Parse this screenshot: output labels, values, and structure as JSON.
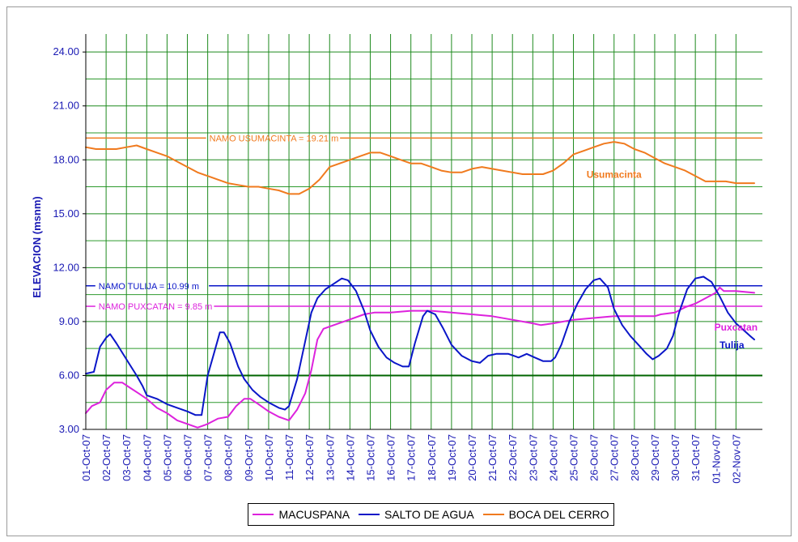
{
  "chart_data": {
    "type": "line",
    "title": "",
    "xlabel": "",
    "ylabel": "ELEVACION (msnm)",
    "ylim": [
      3.0,
      25.0
    ],
    "yticks": [
      "3.00",
      "6.00",
      "9.00",
      "12.00",
      "15.00",
      "18.00",
      "21.00",
      "24.00"
    ],
    "xlim": [
      1,
      34.3
    ],
    "x_tick_labels": [
      "01-Oct-07",
      "02-Oct-07",
      "03-Oct-07",
      "04-Oct-07",
      "05-Oct-07",
      "06-Oct-07",
      "07-Oct-07",
      "08-Oct-07",
      "09-Oct-07",
      "10-Oct-07",
      "11-Oct-07",
      "12-Oct-07",
      "13-Oct-07",
      "14-Oct-07",
      "15-Oct-07",
      "16-Oct-07",
      "17-Oct-07",
      "18-Oct-07",
      "19-Oct-07",
      "20-Oct-07",
      "21-Oct-07",
      "22-Oct-07",
      "23-Oct-07",
      "24-Oct-07",
      "25-Oct-07",
      "26-Oct-07",
      "27-Oct-07",
      "28-Oct-07",
      "29-Oct-07",
      "30-Oct-07",
      "31-Oct-07",
      "01-Nov-07",
      "02-Nov-07"
    ],
    "grid": true,
    "legend_position": "bottom",
    "series": [
      {
        "name": "MACUSPANA",
        "color": "#dd22dd",
        "points": [
          [
            1.0,
            3.9
          ],
          [
            1.3,
            4.3
          ],
          [
            1.7,
            4.5
          ],
          [
            2.0,
            5.2
          ],
          [
            2.4,
            5.6
          ],
          [
            2.8,
            5.6
          ],
          [
            3.2,
            5.3
          ],
          [
            3.6,
            5.0
          ],
          [
            4.0,
            4.7
          ],
          [
            4.5,
            4.2
          ],
          [
            5.0,
            3.9
          ],
          [
            5.5,
            3.5
          ],
          [
            6.0,
            3.3
          ],
          [
            6.5,
            3.1
          ],
          [
            7.0,
            3.3
          ],
          [
            7.5,
            3.6
          ],
          [
            8.0,
            3.7
          ],
          [
            8.4,
            4.3
          ],
          [
            8.8,
            4.7
          ],
          [
            9.1,
            4.7
          ],
          [
            9.5,
            4.4
          ],
          [
            10.0,
            4.0
          ],
          [
            10.5,
            3.7
          ],
          [
            11.0,
            3.5
          ],
          [
            11.4,
            4.1
          ],
          [
            11.8,
            5.0
          ],
          [
            12.1,
            6.3
          ],
          [
            12.4,
            8.0
          ],
          [
            12.7,
            8.6
          ],
          [
            13.2,
            8.8
          ],
          [
            13.7,
            9.0
          ],
          [
            14.2,
            9.2
          ],
          [
            14.7,
            9.4
          ],
          [
            15.2,
            9.5
          ],
          [
            16.0,
            9.5
          ],
          [
            17.0,
            9.6
          ],
          [
            18.0,
            9.6
          ],
          [
            19.0,
            9.5
          ],
          [
            20.0,
            9.4
          ],
          [
            21.0,
            9.3
          ],
          [
            22.0,
            9.1
          ],
          [
            23.0,
            8.9
          ],
          [
            23.4,
            8.8
          ],
          [
            24.0,
            8.9
          ],
          [
            25.0,
            9.1
          ],
          [
            26.0,
            9.2
          ],
          [
            27.0,
            9.3
          ],
          [
            28.0,
            9.3
          ],
          [
            29.0,
            9.3
          ],
          [
            29.3,
            9.4
          ],
          [
            30.0,
            9.5
          ],
          [
            30.5,
            9.8
          ],
          [
            31.0,
            10.0
          ],
          [
            31.5,
            10.3
          ],
          [
            32.0,
            10.6
          ],
          [
            32.2,
            10.9
          ],
          [
            32.4,
            10.7
          ],
          [
            33.0,
            10.7
          ],
          [
            33.9,
            10.6
          ]
        ]
      },
      {
        "name": "SALTO DE AGUA",
        "color": "#0a16c8",
        "points": [
          [
            1.0,
            6.1
          ],
          [
            1.4,
            6.2
          ],
          [
            1.7,
            7.6
          ],
          [
            2.0,
            8.1
          ],
          [
            2.2,
            8.3
          ],
          [
            2.5,
            7.8
          ],
          [
            3.0,
            6.9
          ],
          [
            3.5,
            6.0
          ],
          [
            3.8,
            5.4
          ],
          [
            4.0,
            4.9
          ],
          [
            4.5,
            4.7
          ],
          [
            5.0,
            4.4
          ],
          [
            5.5,
            4.2
          ],
          [
            6.0,
            4.0
          ],
          [
            6.4,
            3.8
          ],
          [
            6.7,
            3.8
          ],
          [
            7.0,
            6.0
          ],
          [
            7.3,
            7.2
          ],
          [
            7.6,
            8.4
          ],
          [
            7.8,
            8.4
          ],
          [
            8.1,
            7.8
          ],
          [
            8.5,
            6.5
          ],
          [
            8.8,
            5.8
          ],
          [
            9.2,
            5.2
          ],
          [
            9.6,
            4.8
          ],
          [
            10.0,
            4.5
          ],
          [
            10.5,
            4.2
          ],
          [
            10.8,
            4.1
          ],
          [
            11.0,
            4.3
          ],
          [
            11.4,
            5.8
          ],
          [
            11.8,
            7.9
          ],
          [
            12.1,
            9.5
          ],
          [
            12.4,
            10.3
          ],
          [
            12.8,
            10.8
          ],
          [
            13.2,
            11.1
          ],
          [
            13.6,
            11.4
          ],
          [
            13.9,
            11.3
          ],
          [
            14.3,
            10.7
          ],
          [
            14.7,
            9.6
          ],
          [
            15.0,
            8.5
          ],
          [
            15.4,
            7.6
          ],
          [
            15.8,
            7.0
          ],
          [
            16.2,
            6.7
          ],
          [
            16.6,
            6.5
          ],
          [
            16.9,
            6.5
          ],
          [
            17.2,
            7.8
          ],
          [
            17.6,
            9.3
          ],
          [
            17.8,
            9.6
          ],
          [
            18.2,
            9.4
          ],
          [
            18.6,
            8.6
          ],
          [
            19.0,
            7.7
          ],
          [
            19.5,
            7.1
          ],
          [
            20.0,
            6.8
          ],
          [
            20.4,
            6.7
          ],
          [
            20.8,
            7.1
          ],
          [
            21.2,
            7.2
          ],
          [
            21.8,
            7.2
          ],
          [
            22.3,
            7.0
          ],
          [
            22.7,
            7.2
          ],
          [
            23.1,
            7.0
          ],
          [
            23.5,
            6.8
          ],
          [
            23.9,
            6.8
          ],
          [
            24.1,
            7.0
          ],
          [
            24.4,
            7.7
          ],
          [
            24.8,
            9.0
          ],
          [
            25.2,
            10.0
          ],
          [
            25.6,
            10.8
          ],
          [
            26.0,
            11.3
          ],
          [
            26.3,
            11.4
          ],
          [
            26.7,
            10.9
          ],
          [
            27.0,
            9.7
          ],
          [
            27.4,
            8.8
          ],
          [
            27.8,
            8.2
          ],
          [
            28.2,
            7.7
          ],
          [
            28.6,
            7.2
          ],
          [
            28.9,
            6.9
          ],
          [
            29.2,
            7.1
          ],
          [
            29.6,
            7.5
          ],
          [
            29.9,
            8.2
          ],
          [
            30.2,
            9.5
          ],
          [
            30.6,
            10.8
          ],
          [
            31.0,
            11.4
          ],
          [
            31.4,
            11.5
          ],
          [
            31.8,
            11.2
          ],
          [
            32.2,
            10.4
          ],
          [
            32.6,
            9.5
          ],
          [
            33.0,
            8.9
          ],
          [
            33.4,
            8.5
          ],
          [
            33.7,
            8.2
          ],
          [
            33.9,
            8.0
          ]
        ]
      },
      {
        "name": "BOCA DEL CERRO",
        "color": "#f07a1e",
        "points": [
          [
            1.0,
            18.7
          ],
          [
            1.5,
            18.6
          ],
          [
            2.0,
            18.6
          ],
          [
            2.5,
            18.6
          ],
          [
            3.0,
            18.7
          ],
          [
            3.5,
            18.8
          ],
          [
            4.0,
            18.6
          ],
          [
            4.5,
            18.4
          ],
          [
            5.0,
            18.2
          ],
          [
            5.5,
            17.9
          ],
          [
            6.0,
            17.6
          ],
          [
            6.5,
            17.3
          ],
          [
            7.0,
            17.1
          ],
          [
            7.5,
            16.9
          ],
          [
            8.0,
            16.7
          ],
          [
            8.5,
            16.6
          ],
          [
            9.0,
            16.5
          ],
          [
            9.5,
            16.5
          ],
          [
            10.0,
            16.4
          ],
          [
            10.5,
            16.3
          ],
          [
            11.0,
            16.1
          ],
          [
            11.5,
            16.1
          ],
          [
            12.0,
            16.4
          ],
          [
            12.5,
            16.9
          ],
          [
            13.0,
            17.6
          ],
          [
            13.5,
            17.8
          ],
          [
            14.0,
            18.0
          ],
          [
            14.5,
            18.2
          ],
          [
            15.0,
            18.4
          ],
          [
            15.5,
            18.4
          ],
          [
            16.0,
            18.2
          ],
          [
            16.5,
            18.0
          ],
          [
            17.0,
            17.8
          ],
          [
            17.5,
            17.8
          ],
          [
            18.0,
            17.6
          ],
          [
            18.5,
            17.4
          ],
          [
            19.0,
            17.3
          ],
          [
            19.5,
            17.3
          ],
          [
            20.0,
            17.5
          ],
          [
            20.5,
            17.6
          ],
          [
            21.0,
            17.5
          ],
          [
            21.5,
            17.4
          ],
          [
            22.0,
            17.3
          ],
          [
            22.5,
            17.2
          ],
          [
            23.0,
            17.2
          ],
          [
            23.5,
            17.2
          ],
          [
            24.0,
            17.4
          ],
          [
            24.5,
            17.8
          ],
          [
            25.0,
            18.3
          ],
          [
            25.5,
            18.5
          ],
          [
            26.0,
            18.7
          ],
          [
            26.5,
            18.9
          ],
          [
            27.0,
            19.0
          ],
          [
            27.5,
            18.9
          ],
          [
            28.0,
            18.6
          ],
          [
            28.5,
            18.4
          ],
          [
            29.0,
            18.1
          ],
          [
            29.5,
            17.8
          ],
          [
            30.0,
            17.6
          ],
          [
            30.5,
            17.4
          ],
          [
            31.0,
            17.1
          ],
          [
            31.5,
            16.8
          ],
          [
            32.0,
            16.8
          ],
          [
            32.5,
            16.8
          ],
          [
            33.0,
            16.7
          ],
          [
            33.5,
            16.7
          ],
          [
            33.9,
            16.7
          ]
        ]
      }
    ],
    "reference_lines": [
      {
        "label": "NAMO USUMACINTA = 19.21 m",
        "value": 19.21,
        "color": "#f07a1e",
        "label_x": 7.0
      },
      {
        "label": "NAMO TULIJA = 10.99 m",
        "value": 10.99,
        "color": "#0a16c8",
        "label_x": 1.55
      },
      {
        "label": "NAMO PUXCATAN = 9.85 m",
        "value": 9.85,
        "color": "#dd22dd",
        "label_x": 1.55
      }
    ],
    "annotations": [
      {
        "text": "Usumacinta",
        "x": 27.0,
        "y": 17.0,
        "color": "#f07a1e"
      },
      {
        "text": "Puxcatan",
        "x": 33.0,
        "y": 8.5,
        "color": "#dd22dd"
      },
      {
        "text": "Tulija",
        "x": 32.8,
        "y": 7.5,
        "color": "#0a16c8"
      }
    ]
  },
  "legend": {
    "items": [
      {
        "label": "MACUSPANA",
        "color": "#dd22dd"
      },
      {
        "label": "SALTO DE AGUA",
        "color": "#0a16c8"
      },
      {
        "label": "BOCA DEL CERRO",
        "color": "#f07a1e"
      }
    ]
  }
}
